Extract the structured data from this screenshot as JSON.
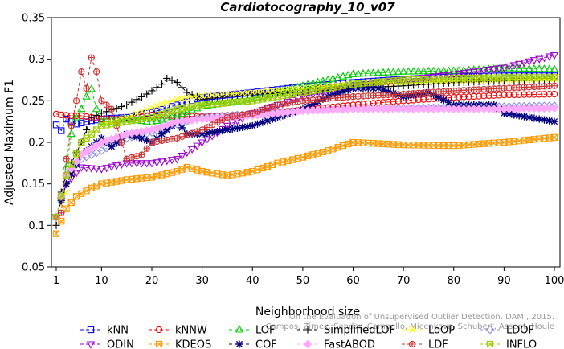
{
  "chart_data": {
    "type": "line",
    "title": "Cardiotocography_10_v07",
    "xlabel": "Neighborhood size",
    "ylabel": "Adjusted Maximum F1",
    "xlim": [
      1,
      100
    ],
    "ylim": [
      0.05,
      0.35
    ],
    "x_ticks": [
      1,
      10,
      20,
      30,
      40,
      50,
      60,
      70,
      80,
      90,
      100
    ],
    "y_ticks": [
      0.05,
      0.1,
      0.15,
      0.2,
      0.25,
      0.3,
      0.35
    ],
    "y_tick_labels": [
      "0.05",
      "0.1",
      "0.15",
      "0.2",
      "0.25",
      "0.3",
      "0.35"
    ],
    "grid": false,
    "legend_position": "bottom",
    "x_step": 1,
    "series": [
      {
        "name": "kNN",
        "color": "#0000ff",
        "marker": "square",
        "dash": "4,3",
        "x_start": 1,
        "knots": [
          [
            1,
            0.221
          ],
          [
            2,
            0.214
          ],
          [
            3,
            0.228
          ],
          [
            5,
            0.222
          ],
          [
            8,
            0.226
          ],
          [
            10,
            0.228
          ],
          [
            15,
            0.23
          ],
          [
            20,
            0.236
          ],
          [
            25,
            0.245
          ],
          [
            30,
            0.254
          ],
          [
            40,
            0.26
          ],
          [
            50,
            0.267
          ],
          [
            60,
            0.272
          ],
          [
            70,
            0.276
          ],
          [
            80,
            0.279
          ],
          [
            90,
            0.28
          ],
          [
            100,
            0.28
          ]
        ]
      },
      {
        "name": "kNNW",
        "color": "#ff0000",
        "marker": "circle",
        "dash": "4,3",
        "x_start": 1,
        "knots": [
          [
            1,
            0.234
          ],
          [
            2,
            0.233
          ],
          [
            4,
            0.232
          ],
          [
            6,
            0.232
          ],
          [
            10,
            0.228
          ],
          [
            15,
            0.228
          ],
          [
            20,
            0.233
          ],
          [
            25,
            0.232
          ],
          [
            30,
            0.231
          ],
          [
            40,
            0.234
          ],
          [
            50,
            0.239
          ],
          [
            60,
            0.245
          ],
          [
            70,
            0.25
          ],
          [
            80,
            0.254
          ],
          [
            90,
            0.257
          ],
          [
            100,
            0.258
          ]
        ]
      },
      {
        "name": "LOF",
        "color": "#00cc00",
        "marker": "triangle-up",
        "dash": "4,3",
        "x_start": 1,
        "knots": [
          [
            1,
            0.11
          ],
          [
            2,
            0.13
          ],
          [
            3,
            0.17
          ],
          [
            4,
            0.21
          ],
          [
            5,
            0.23
          ],
          [
            6,
            0.24
          ],
          [
            7,
            0.255
          ],
          [
            8,
            0.264
          ],
          [
            9,
            0.24
          ],
          [
            10,
            0.225
          ],
          [
            15,
            0.228
          ],
          [
            20,
            0.224
          ],
          [
            25,
            0.232
          ],
          [
            30,
            0.243
          ],
          [
            40,
            0.252
          ],
          [
            50,
            0.268
          ],
          [
            60,
            0.282
          ],
          [
            70,
            0.285
          ],
          [
            80,
            0.286
          ],
          [
            90,
            0.289
          ],
          [
            100,
            0.288
          ]
        ]
      },
      {
        "name": "SimplifiedLOF",
        "color": "#000000",
        "marker": "plus",
        "dash": "4,3",
        "x_start": 1,
        "knots": [
          [
            1,
            0.1
          ],
          [
            2,
            0.14
          ],
          [
            3,
            0.16
          ],
          [
            4,
            0.175
          ],
          [
            6,
            0.2
          ],
          [
            8,
            0.23
          ],
          [
            10,
            0.235
          ],
          [
            15,
            0.245
          ],
          [
            19,
            0.258
          ],
          [
            22,
            0.27
          ],
          [
            23,
            0.277
          ],
          [
            25,
            0.272
          ],
          [
            27,
            0.26
          ],
          [
            30,
            0.252
          ],
          [
            40,
            0.258
          ],
          [
            50,
            0.26
          ],
          [
            60,
            0.265
          ],
          [
            70,
            0.268
          ],
          [
            80,
            0.272
          ],
          [
            90,
            0.274
          ],
          [
            100,
            0.275
          ]
        ]
      },
      {
        "name": "LoOP",
        "color": "#ffff00",
        "marker": "x",
        "dash": "4,3",
        "x_start": 1,
        "knots": [
          [
            1,
            0.11
          ],
          [
            3,
            0.14
          ],
          [
            6,
            0.2
          ],
          [
            10,
            0.22
          ],
          [
            15,
            0.23
          ],
          [
            20,
            0.242
          ],
          [
            25,
            0.252
          ],
          [
            30,
            0.256
          ],
          [
            40,
            0.26
          ],
          [
            50,
            0.265
          ],
          [
            60,
            0.27
          ],
          [
            70,
            0.272
          ],
          [
            80,
            0.274
          ],
          [
            90,
            0.275
          ],
          [
            100,
            0.276
          ]
        ]
      },
      {
        "name": "LDOF",
        "color": "#9090e0",
        "marker": "diamond",
        "dash": "4,3",
        "x_start": 1,
        "knots": [
          [
            1,
            0.11
          ],
          [
            3,
            0.16
          ],
          [
            6,
            0.18
          ],
          [
            10,
            0.19
          ],
          [
            15,
            0.205
          ],
          [
            20,
            0.212
          ],
          [
            25,
            0.222
          ],
          [
            30,
            0.23
          ],
          [
            40,
            0.234
          ],
          [
            50,
            0.238
          ],
          [
            60,
            0.24
          ],
          [
            70,
            0.241
          ],
          [
            80,
            0.242
          ],
          [
            90,
            0.243
          ],
          [
            100,
            0.244
          ]
        ]
      },
      {
        "name": "ODIN",
        "color": "#9900cc",
        "marker": "triangle-down",
        "dash": "4,3",
        "x_start": 1,
        "knots": [
          [
            1,
            0.11
          ],
          [
            3,
            0.15
          ],
          [
            6,
            0.17
          ],
          [
            10,
            0.168
          ],
          [
            15,
            0.175
          ],
          [
            20,
            0.175
          ],
          [
            25,
            0.18
          ],
          [
            30,
            0.2
          ],
          [
            35,
            0.22
          ],
          [
            40,
            0.235
          ],
          [
            50,
            0.255
          ],
          [
            60,
            0.268
          ],
          [
            70,
            0.275
          ],
          [
            80,
            0.282
          ],
          [
            90,
            0.29
          ],
          [
            100,
            0.305
          ]
        ]
      },
      {
        "name": "KDEOS",
        "color": "#ff9900",
        "marker": "square-x",
        "dash": "4,3",
        "x_start": 1,
        "knots": [
          [
            1,
            0.09
          ],
          [
            3,
            0.12
          ],
          [
            5,
            0.135
          ],
          [
            8,
            0.145
          ],
          [
            10,
            0.15
          ],
          [
            15,
            0.155
          ],
          [
            20,
            0.158
          ],
          [
            25,
            0.165
          ],
          [
            27,
            0.17
          ],
          [
            30,
            0.165
          ],
          [
            35,
            0.16
          ],
          [
            40,
            0.165
          ],
          [
            45,
            0.175
          ],
          [
            50,
            0.182
          ],
          [
            55,
            0.19
          ],
          [
            60,
            0.2
          ],
          [
            70,
            0.197
          ],
          [
            80,
            0.196
          ],
          [
            90,
            0.2
          ],
          [
            100,
            0.206
          ]
        ]
      },
      {
        "name": "COF",
        "color": "#000080",
        "marker": "asterisk",
        "dash": "4,3",
        "x_start": 1,
        "knots": [
          [
            1,
            0.11
          ],
          [
            3,
            0.15
          ],
          [
            6,
            0.185
          ],
          [
            10,
            0.205
          ],
          [
            12,
            0.195
          ],
          [
            15,
            0.21
          ],
          [
            18,
            0.205
          ],
          [
            20,
            0.2
          ],
          [
            23,
            0.215
          ],
          [
            25,
            0.225
          ],
          [
            27,
            0.21
          ],
          [
            30,
            0.21
          ],
          [
            35,
            0.215
          ],
          [
            40,
            0.22
          ],
          [
            45,
            0.23
          ],
          [
            50,
            0.24
          ],
          [
            55,
            0.255
          ],
          [
            60,
            0.265
          ],
          [
            65,
            0.265
          ],
          [
            70,
            0.255
          ],
          [
            75,
            0.26
          ],
          [
            80,
            0.245
          ],
          [
            85,
            0.245
          ],
          [
            88,
            0.245
          ],
          [
            90,
            0.235
          ],
          [
            95,
            0.23
          ],
          [
            100,
            0.225
          ]
        ]
      },
      {
        "name": "FastABOD",
        "color": "#ffaaff",
        "marker": "diamond-filled",
        "dash": "4,3",
        "x_start": 1,
        "knots": [
          [
            1,
            0.11
          ],
          [
            3,
            0.16
          ],
          [
            6,
            0.185
          ],
          [
            10,
            0.2
          ],
          [
            15,
            0.21
          ],
          [
            20,
            0.215
          ],
          [
            25,
            0.225
          ],
          [
            30,
            0.228
          ],
          [
            40,
            0.232
          ],
          [
            50,
            0.238
          ],
          [
            60,
            0.24
          ],
          [
            70,
            0.24
          ],
          [
            80,
            0.24
          ],
          [
            90,
            0.24
          ],
          [
            100,
            0.241
          ]
        ]
      },
      {
        "name": "LDF",
        "color": "#cc3333",
        "marker": "circle-plus",
        "dash": "4,3",
        "x_start": 1,
        "knots": [
          [
            1,
            0.11
          ],
          [
            2,
            0.115
          ],
          [
            3,
            0.18
          ],
          [
            4,
            0.22
          ],
          [
            5,
            0.25
          ],
          [
            6,
            0.285
          ],
          [
            7,
            0.265
          ],
          [
            8,
            0.302
          ],
          [
            9,
            0.285
          ],
          [
            10,
            0.25
          ],
          [
            12,
            0.24
          ],
          [
            15,
            0.18
          ],
          [
            18,
            0.185
          ],
          [
            20,
            0.2
          ],
          [
            25,
            0.205
          ],
          [
            30,
            0.215
          ],
          [
            35,
            0.23
          ],
          [
            40,
            0.235
          ],
          [
            45,
            0.245
          ],
          [
            50,
            0.25
          ],
          [
            60,
            0.255
          ],
          [
            70,
            0.258
          ],
          [
            80,
            0.262
          ],
          [
            90,
            0.265
          ],
          [
            100,
            0.268
          ]
        ]
      },
      {
        "name": "INFLO",
        "color": "#99cc00",
        "marker": "square-x-light",
        "dash": "4,3",
        "x_start": 1,
        "knots": [
          [
            1,
            0.11
          ],
          [
            3,
            0.16
          ],
          [
            6,
            0.2
          ],
          [
            10,
            0.22
          ],
          [
            15,
            0.225
          ],
          [
            20,
            0.23
          ],
          [
            25,
            0.24
          ],
          [
            30,
            0.245
          ],
          [
            40,
            0.25
          ],
          [
            50,
            0.26
          ],
          [
            60,
            0.27
          ],
          [
            70,
            0.275
          ],
          [
            80,
            0.277
          ],
          [
            90,
            0.278
          ],
          [
            100,
            0.278
          ]
        ]
      }
    ]
  },
  "watermark": {
    "line1": "Campos, Zimek, Sander, Campello, Micenkova, Schubert, Assent, Houle",
    "line2": "On the Evaluation of Unsupervised Outlier Detection. DAMI, 2015."
  }
}
